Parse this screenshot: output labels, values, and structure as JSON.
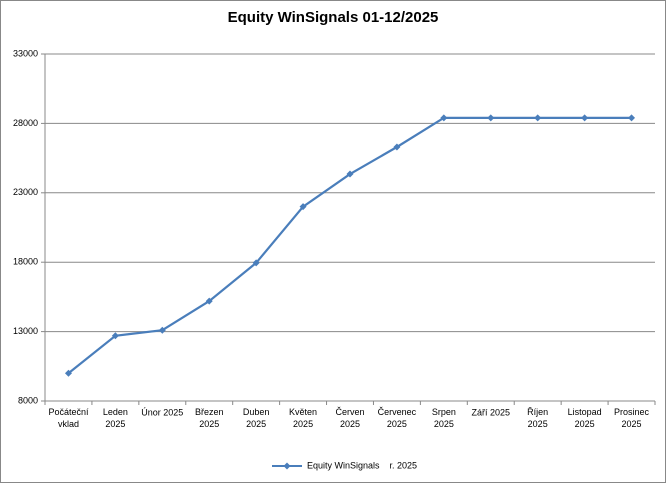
{
  "chart_data": {
    "type": "line",
    "title": "Equity WinSignals 01-12/2025",
    "categories": [
      "Počáteční vklad",
      "Leden 2025",
      "Únor 2025",
      "Březen 2025",
      "Duben 2025",
      "Květen 2025",
      "Červen 2025",
      "Červenec 2025",
      "Srpen 2025",
      "Září 2025",
      "Říjen 2025",
      "Listopad 2025",
      "Prosinec 2025"
    ],
    "series": [
      {
        "name": "Equity WinSignals    r. 2025",
        "color": "#4a7ebb",
        "values": [
          10000,
          12700,
          13100,
          15200,
          17950,
          22000,
          24350,
          26300,
          28400,
          28400,
          28400,
          28400,
          28400
        ]
      }
    ],
    "ylim": [
      8000,
      33000
    ],
    "yticks": [
      8000,
      13000,
      18000,
      23000,
      28000,
      33000
    ],
    "grid": true,
    "legend": "bottom"
  }
}
